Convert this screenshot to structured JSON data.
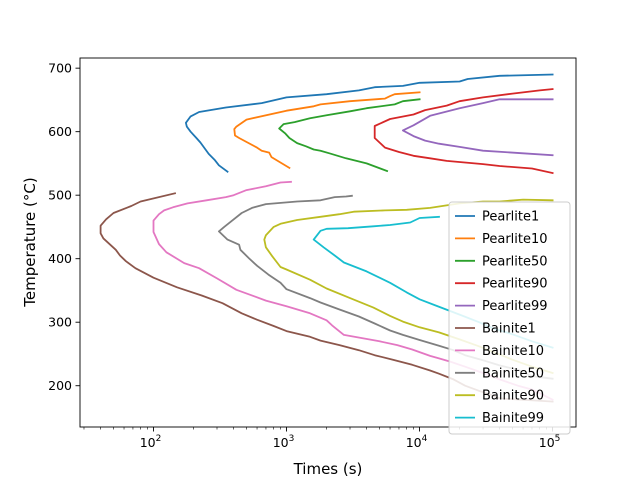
{
  "chart_data": {
    "type": "line",
    "xlabel": "Times (s)",
    "ylabel": "Temperature (°C)",
    "xscale": "log",
    "xlim": [
      28,
      150000
    ],
    "ylim": [
      135,
      716
    ],
    "x_ticks": [
      {
        "value": 100,
        "base": "10",
        "exp": "2"
      },
      {
        "value": 1000,
        "base": "10",
        "exp": "3"
      },
      {
        "value": 10000,
        "base": "10",
        "exp": "4"
      },
      {
        "value": 100000,
        "base": "10",
        "exp": "5"
      }
    ],
    "y_ticks": [
      "200",
      "300",
      "400",
      "500",
      "600",
      "700"
    ],
    "legend_position": "lower right",
    "grid": false,
    "series": [
      {
        "name": "Pearlite1",
        "color": "#1f77b4",
        "points": [
          [
            360,
            537
          ],
          [
            310,
            547
          ],
          [
            290,
            555
          ],
          [
            260,
            565
          ],
          [
            225,
            583
          ],
          [
            210,
            590
          ],
          [
            190,
            600
          ],
          [
            178,
            608
          ],
          [
            175,
            614
          ],
          [
            190,
            624
          ],
          [
            220,
            631
          ],
          [
            350,
            638
          ],
          [
            650,
            645
          ],
          [
            1000,
            654
          ],
          [
            2000,
            659
          ],
          [
            3500,
            665
          ],
          [
            4600,
            670
          ],
          [
            7500,
            672
          ],
          [
            10000,
            677
          ],
          [
            20000,
            679
          ],
          [
            23000,
            683
          ],
          [
            40000,
            688
          ],
          [
            100000,
            690
          ]
        ]
      },
      {
        "name": "Pearlite10",
        "color": "#ff7f0e",
        "points": [
          [
            1050,
            543
          ],
          [
            770,
            560
          ],
          [
            740,
            567
          ],
          [
            650,
            570
          ],
          [
            600,
            575
          ],
          [
            440,
            590
          ],
          [
            410,
            594
          ],
          [
            405,
            604
          ],
          [
            420,
            608
          ],
          [
            500,
            619
          ],
          [
            1000,
            633
          ],
          [
            1600,
            640
          ],
          [
            1800,
            643
          ],
          [
            3000,
            648
          ],
          [
            5500,
            652
          ],
          [
            6000,
            656
          ],
          [
            6500,
            659
          ],
          [
            10000,
            662
          ]
        ]
      },
      {
        "name": "Pearlite50",
        "color": "#2ca02c",
        "points": [
          [
            5700,
            538
          ],
          [
            4000,
            550
          ],
          [
            2800,
            558
          ],
          [
            2100,
            566
          ],
          [
            1800,
            570
          ],
          [
            1600,
            572
          ],
          [
            1400,
            577
          ],
          [
            1200,
            582
          ],
          [
            1050,
            590
          ],
          [
            980,
            597
          ],
          [
            880,
            605
          ],
          [
            950,
            612
          ],
          [
            1150,
            615
          ],
          [
            1500,
            621
          ],
          [
            2000,
            626
          ],
          [
            3000,
            632
          ],
          [
            4000,
            637
          ],
          [
            6500,
            643
          ],
          [
            7500,
            648
          ],
          [
            10000,
            651
          ]
        ]
      },
      {
        "name": "Pearlite90",
        "color": "#d62728",
        "points": [
          [
            100000,
            535
          ],
          [
            70000,
            542
          ],
          [
            40000,
            546
          ],
          [
            30000,
            549
          ],
          [
            16000,
            554
          ],
          [
            12000,
            558
          ],
          [
            9000,
            562
          ],
          [
            7000,
            568
          ],
          [
            5500,
            575
          ],
          [
            4600,
            590
          ],
          [
            4600,
            602
          ],
          [
            4600,
            609
          ],
          [
            6000,
            620
          ],
          [
            9000,
            627
          ],
          [
            11000,
            634
          ],
          [
            16000,
            641
          ],
          [
            20000,
            648
          ],
          [
            30000,
            654
          ],
          [
            50000,
            660
          ],
          [
            80000,
            665
          ],
          [
            100000,
            667
          ]
        ]
      },
      {
        "name": "Pearlite99",
        "color": "#9467bd",
        "points": [
          [
            100000,
            563
          ],
          [
            60000,
            566
          ],
          [
            30000,
            570
          ],
          [
            20000,
            576
          ],
          [
            14000,
            581
          ],
          [
            11000,
            586
          ],
          [
            9000,
            593
          ],
          [
            7500,
            602
          ],
          [
            9000,
            610
          ],
          [
            12000,
            625
          ],
          [
            20000,
            637
          ],
          [
            30000,
            645
          ],
          [
            40000,
            651
          ],
          [
            100000,
            651
          ]
        ]
      },
      {
        "name": "Bainite1",
        "color": "#8c564b",
        "points": [
          [
            145,
            503
          ],
          [
            80,
            490
          ],
          [
            68,
            483
          ],
          [
            50,
            472
          ],
          [
            44,
            462
          ],
          [
            40,
            452
          ],
          [
            40,
            440
          ],
          [
            42,
            432
          ],
          [
            52,
            414
          ],
          [
            56,
            405
          ],
          [
            62,
            396
          ],
          [
            73,
            385
          ],
          [
            100,
            370
          ],
          [
            150,
            355
          ],
          [
            230,
            342
          ],
          [
            330,
            330
          ],
          [
            460,
            314
          ],
          [
            600,
            304
          ],
          [
            800,
            294
          ],
          [
            1000,
            286
          ],
          [
            1500,
            277
          ],
          [
            1800,
            271
          ],
          [
            2500,
            264
          ],
          [
            3500,
            256
          ],
          [
            4600,
            248
          ],
          [
            6300,
            241
          ],
          [
            8800,
            233
          ],
          [
            12000,
            224
          ],
          [
            14000,
            219
          ],
          [
            18000,
            210
          ],
          [
            22000,
            200
          ],
          [
            28000,
            192
          ],
          [
            34000,
            186
          ],
          [
            40000,
            180
          ],
          [
            100000,
            175
          ]
        ]
      },
      {
        "name": "Bainite10",
        "color": "#e377c2",
        "points": [
          [
            1080,
            521
          ],
          [
            900,
            520
          ],
          [
            700,
            514
          ],
          [
            500,
            508
          ],
          [
            400,
            500
          ],
          [
            350,
            497
          ],
          [
            250,
            492
          ],
          [
            180,
            487
          ],
          [
            140,
            481
          ],
          [
            120,
            476
          ],
          [
            110,
            470
          ],
          [
            100,
            460
          ],
          [
            100,
            448
          ],
          [
            100,
            442
          ],
          [
            110,
            423
          ],
          [
            125,
            410
          ],
          [
            170,
            393
          ],
          [
            220,
            385
          ],
          [
            300,
            369
          ],
          [
            420,
            351
          ],
          [
            520,
            344
          ],
          [
            700,
            334
          ],
          [
            1000,
            325
          ],
          [
            1500,
            314
          ],
          [
            2000,
            303
          ],
          [
            2200,
            295
          ],
          [
            2700,
            280
          ],
          [
            5000,
            270
          ],
          [
            6800,
            264
          ],
          [
            8800,
            257
          ],
          [
            12000,
            247
          ],
          [
            14000,
            243
          ],
          [
            17000,
            238
          ],
          [
            22000,
            230
          ],
          [
            30000,
            220
          ],
          [
            40000,
            210
          ],
          [
            55000,
            200
          ],
          [
            70000,
            194
          ],
          [
            100000,
            178
          ]
        ]
      },
      {
        "name": "Bainite50",
        "color": "#7f7f7f",
        "points": [
          [
            3100,
            499
          ],
          [
            2800,
            498
          ],
          [
            2300,
            497
          ],
          [
            1800,
            492
          ],
          [
            1200,
            490
          ],
          [
            700,
            486
          ],
          [
            550,
            480
          ],
          [
            460,
            472
          ],
          [
            390,
            460
          ],
          [
            340,
            450
          ],
          [
            310,
            443
          ],
          [
            360,
            430
          ],
          [
            440,
            422
          ],
          [
            450,
            414
          ],
          [
            520,
            401
          ],
          [
            600,
            389
          ],
          [
            730,
            375
          ],
          [
            900,
            362
          ],
          [
            1000,
            352
          ],
          [
            1500,
            338
          ],
          [
            1800,
            331
          ],
          [
            2500,
            320
          ],
          [
            3500,
            309
          ],
          [
            4600,
            298
          ],
          [
            6000,
            287
          ],
          [
            7500,
            280
          ],
          [
            10000,
            272
          ],
          [
            14000,
            263
          ],
          [
            18000,
            256
          ],
          [
            22000,
            248
          ],
          [
            30000,
            240
          ],
          [
            40000,
            232
          ],
          [
            55000,
            225
          ],
          [
            70000,
            215
          ],
          [
            100000,
            211
          ]
        ]
      },
      {
        "name": "Bainite90",
        "color": "#bcbd22",
        "points": [
          [
            100000,
            492
          ],
          [
            60000,
            493
          ],
          [
            40000,
            490
          ],
          [
            30000,
            490
          ],
          [
            20000,
            487
          ],
          [
            12000,
            480
          ],
          [
            8000,
            477
          ],
          [
            5500,
            476
          ],
          [
            3200,
            474
          ],
          [
            2500,
            470
          ],
          [
            1800,
            466
          ],
          [
            1200,
            461
          ],
          [
            900,
            455
          ],
          [
            800,
            450
          ],
          [
            700,
            437
          ],
          [
            680,
            430
          ],
          [
            700,
            418
          ],
          [
            780,
            404
          ],
          [
            900,
            387
          ],
          [
            1000,
            383
          ],
          [
            1500,
            367
          ],
          [
            2000,
            353
          ],
          [
            3000,
            338
          ],
          [
            4500,
            323
          ],
          [
            6000,
            310
          ],
          [
            7500,
            301
          ],
          [
            10000,
            292
          ],
          [
            14000,
            284
          ],
          [
            20000,
            273
          ],
          [
            28000,
            262
          ],
          [
            36000,
            253
          ],
          [
            50000,
            241
          ],
          [
            70000,
            230
          ],
          [
            100000,
            220
          ]
        ]
      },
      {
        "name": "Bainite99",
        "color": "#17becf",
        "points": [
          [
            14000,
            466
          ],
          [
            10000,
            464
          ],
          [
            8500,
            457
          ],
          [
            6000,
            453
          ],
          [
            4500,
            451
          ],
          [
            2900,
            448
          ],
          [
            2000,
            447
          ],
          [
            1800,
            444
          ],
          [
            1600,
            430
          ],
          [
            1900,
            418
          ],
          [
            2300,
            405
          ],
          [
            2700,
            394
          ],
          [
            4000,
            380
          ],
          [
            6000,
            362
          ],
          [
            8000,
            347
          ],
          [
            10000,
            336
          ],
          [
            13000,
            327
          ],
          [
            20000,
            312
          ],
          [
            28000,
            300
          ],
          [
            36000,
            290
          ],
          [
            50000,
            281
          ],
          [
            70000,
            270
          ],
          [
            100000,
            260
          ]
        ]
      }
    ]
  }
}
